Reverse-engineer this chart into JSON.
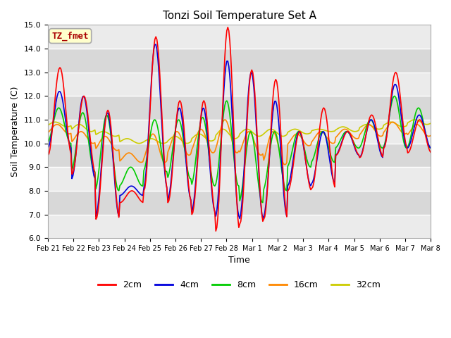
{
  "title": "Tonzi Soil Temperature Set A",
  "xlabel": "Time",
  "ylabel": "Soil Temperature (C)",
  "ylim": [
    6.0,
    15.0
  ],
  "yticks": [
    6.0,
    7.0,
    8.0,
    9.0,
    10.0,
    11.0,
    12.0,
    13.0,
    14.0,
    15.0
  ],
  "annotation": "TZ_fmet",
  "annotation_bg": "#ffffcc",
  "annotation_border": "#aaaaaa",
  "annotation_text_color": "#aa0000",
  "bg_light": "#ebebeb",
  "bg_dark": "#d8d8d8",
  "grid_color": "#ffffff",
  "series": {
    "2cm": {
      "color": "#ff0000",
      "lw": 1.2
    },
    "4cm": {
      "color": "#0000dd",
      "lw": 1.2
    },
    "8cm": {
      "color": "#00cc00",
      "lw": 1.2
    },
    "16cm": {
      "color": "#ff8800",
      "lw": 1.2
    },
    "32cm": {
      "color": "#cccc00",
      "lw": 1.2
    }
  },
  "x_labels": [
    "Feb 21",
    "Feb 22",
    "Feb 23",
    "Feb 24",
    "Feb 25",
    "Feb 26",
    "Feb 27",
    "Feb 28",
    "Mar 1",
    "Mar 2",
    "Mar 3",
    "Mar 4",
    "Mar 5",
    "Mar 6",
    "Mar 7",
    "Mar 8"
  ],
  "num_points": 384
}
